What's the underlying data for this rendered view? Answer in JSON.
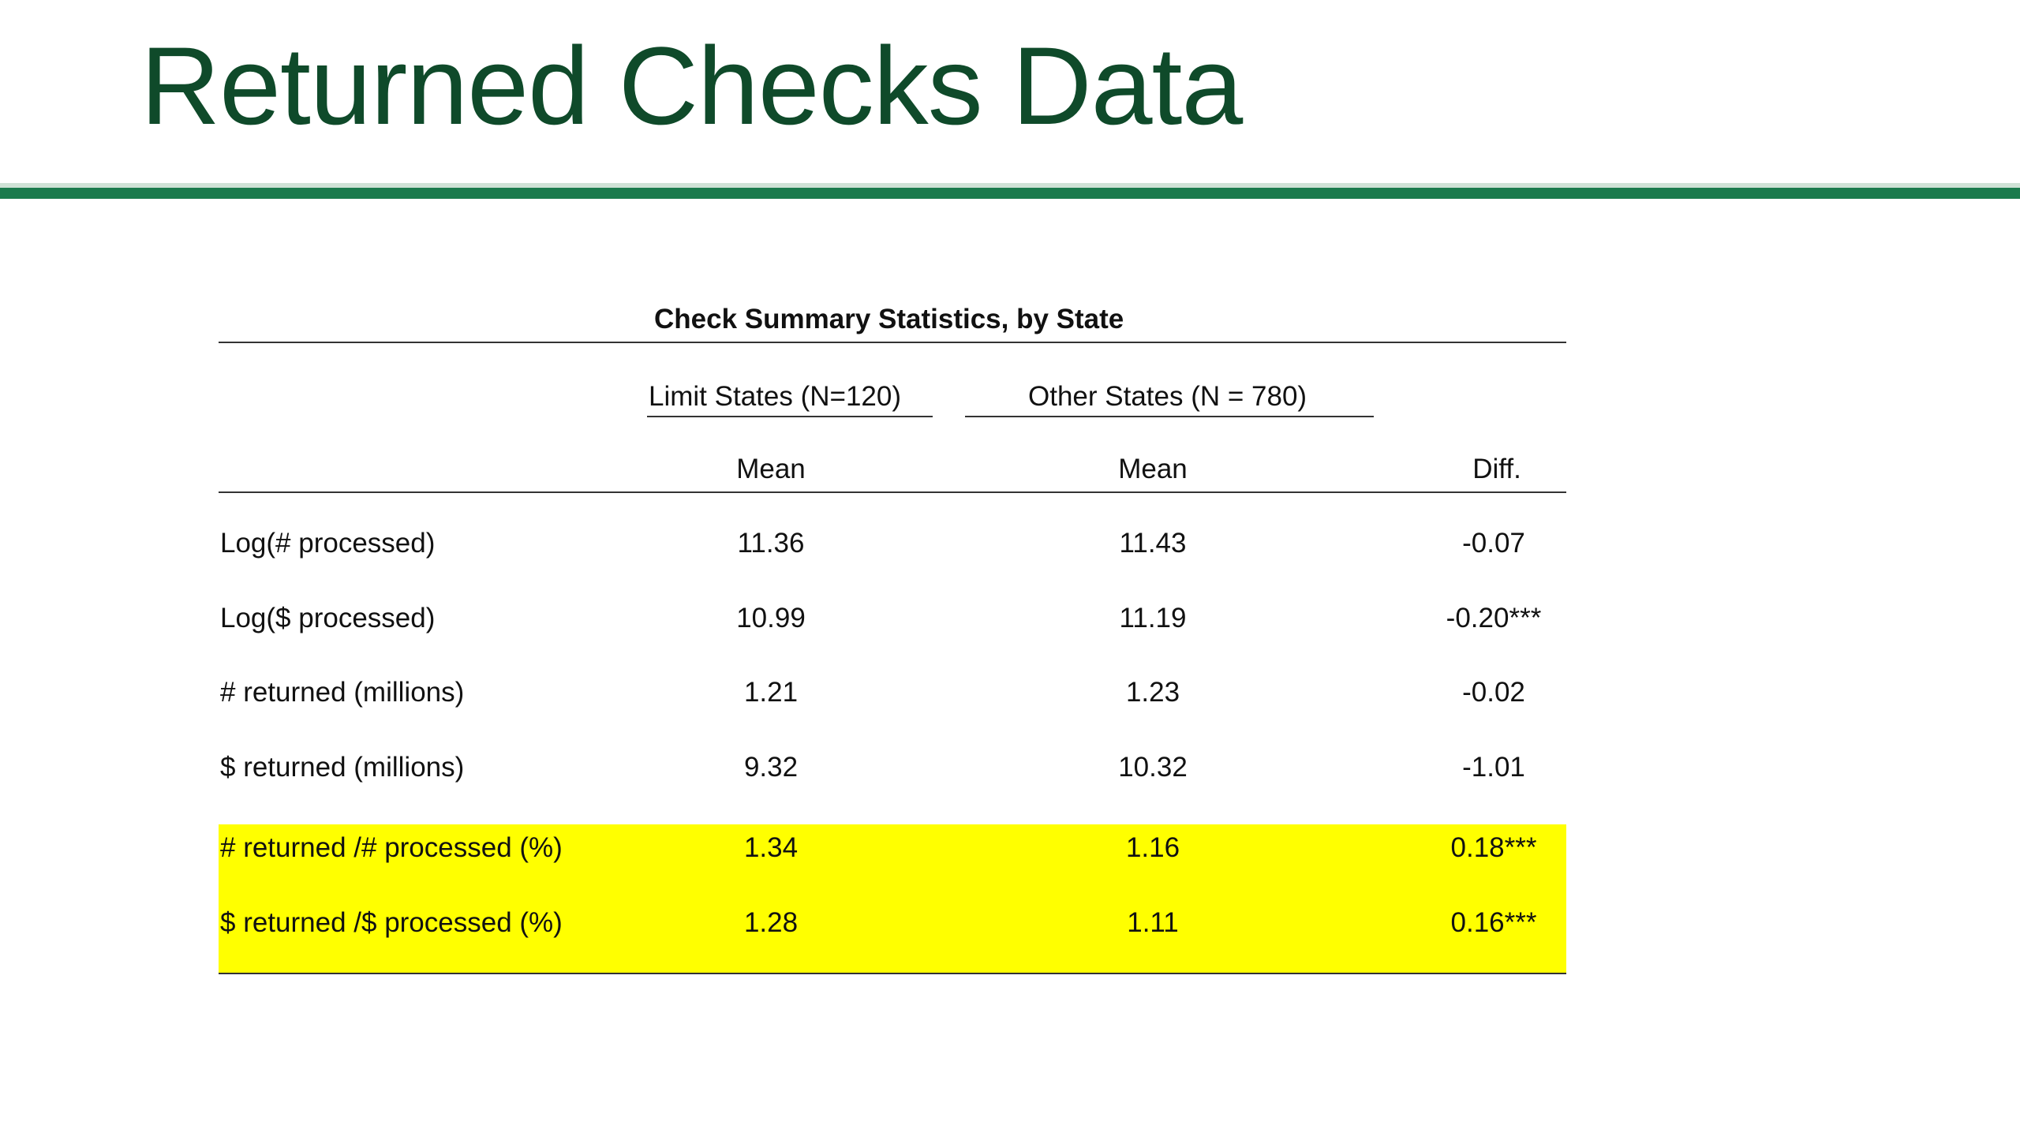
{
  "slide": {
    "title": "Returned Checks Data"
  },
  "colors": {
    "title": "#0f4a2a",
    "rule": "#1b7a4d",
    "highlight": "#ffff00"
  },
  "table": {
    "caption": "Check Summary Statistics, by State",
    "groups": {
      "limit": "Limit States (N=120)",
      "other": "Other States (N = 780)"
    },
    "columns": {
      "limit_mean": "Mean",
      "other_mean": "Mean",
      "diff": "Diff."
    },
    "rows": [
      {
        "label": "Log(# processed)",
        "limit": "11.36",
        "other": "11.43",
        "diff": "-0.07",
        "highlighted": false
      },
      {
        "label": "Log($ processed)",
        "limit": "10.99",
        "other": "11.19",
        "diff": "-0.20***",
        "highlighted": false
      },
      {
        "label": "# returned (millions)",
        "limit": "1.21",
        "other": "1.23",
        "diff": "-0.02",
        "highlighted": false
      },
      {
        "label": "$ returned (millions)",
        "limit": "9.32",
        "other": "10.32",
        "diff": "-1.01",
        "highlighted": false
      },
      {
        "label": "# returned /# processed (%)",
        "limit": "1.34",
        "other": "1.16",
        "diff": "0.18***",
        "highlighted": true
      },
      {
        "label": "$ returned /$ processed (%)",
        "limit": "1.28",
        "other": "1.11",
        "diff": "0.16***",
        "highlighted": true
      }
    ]
  }
}
